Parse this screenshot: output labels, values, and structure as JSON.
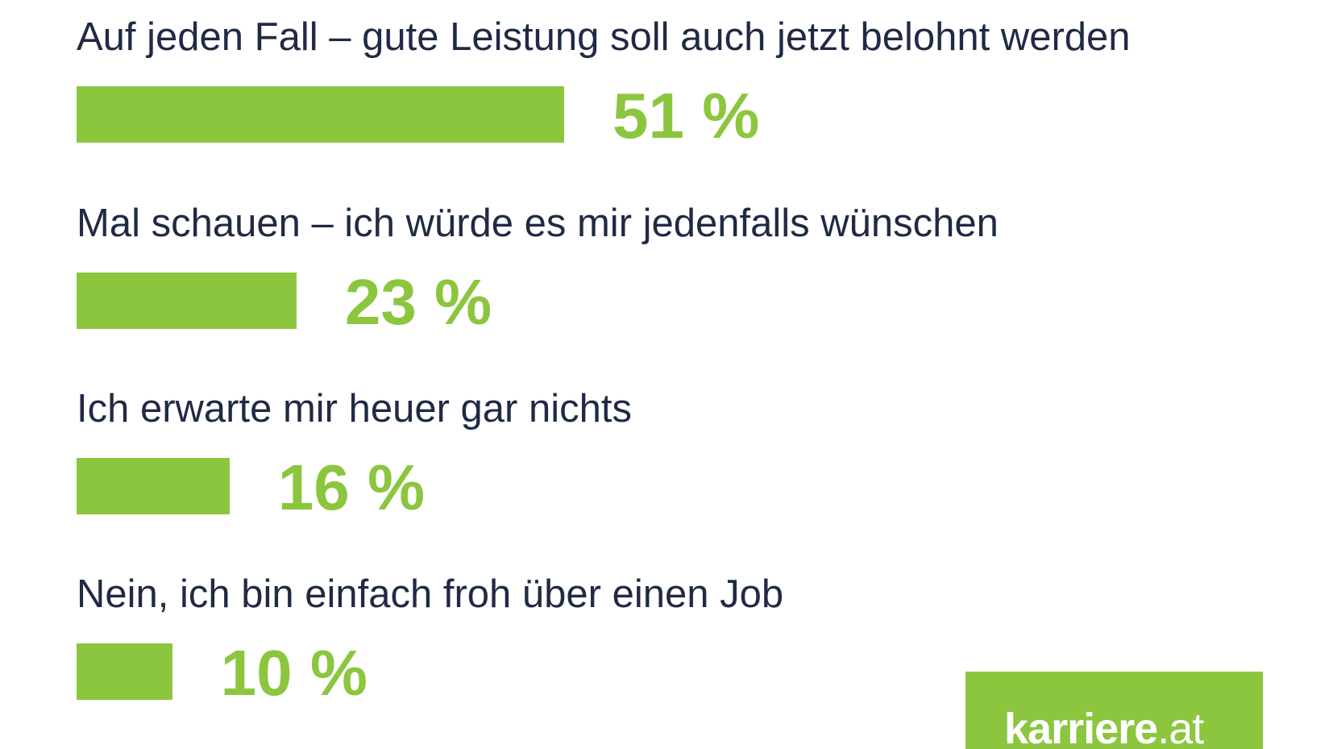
{
  "chart_data": {
    "type": "bar",
    "orientation": "horizontal",
    "categories": [
      "Auf jeden Fall – gute Leistung soll auch jetzt belohnt werden",
      "Mal schauen – ich würde es mir jedenfalls wünschen",
      "Ich erwarte mir heuer gar nichts",
      "Nein, ich bin einfach froh über einen Job"
    ],
    "values": [
      51,
      23,
      16,
      10
    ],
    "value_labels": [
      "51 %",
      "23 %",
      "16 %",
      "10 %"
    ],
    "unit": "%",
    "xlim": [
      0,
      100
    ],
    "grid": false,
    "bar_color": "#8cc63f",
    "text_color": "#1f2a44"
  },
  "logo": {
    "name": "karriere",
    "suffix": ".at",
    "background": "#8cc63f"
  }
}
